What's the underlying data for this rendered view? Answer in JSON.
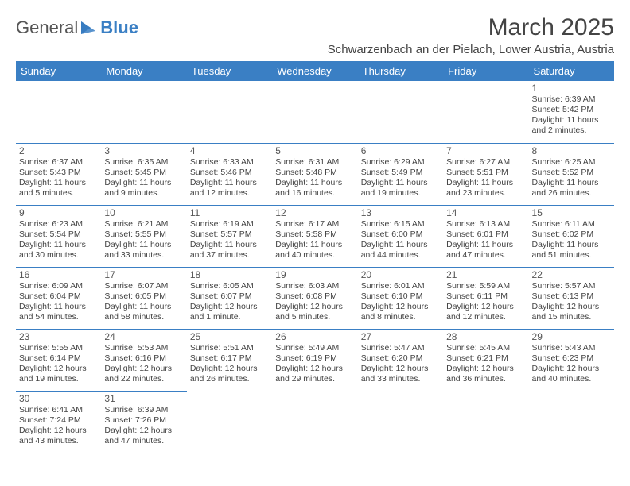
{
  "logo": {
    "text1": "General",
    "text2": "Blue"
  },
  "title": "March 2025",
  "location": "Schwarzenbach an der Pielach, Lower Austria, Austria",
  "colors": {
    "header_bg": "#3a7fc4",
    "header_fg": "#ffffff",
    "border": "#3a7fc4",
    "text": "#444444",
    "logo_gray": "#555555",
    "background": "#ffffff"
  },
  "day_headers": [
    "Sunday",
    "Monday",
    "Tuesday",
    "Wednesday",
    "Thursday",
    "Friday",
    "Saturday"
  ],
  "weeks": [
    [
      null,
      null,
      null,
      null,
      null,
      null,
      {
        "n": "1",
        "sr": "Sunrise: 6:39 AM",
        "ss": "Sunset: 5:42 PM",
        "dl": "Daylight: 11 hours and 2 minutes."
      }
    ],
    [
      {
        "n": "2",
        "sr": "Sunrise: 6:37 AM",
        "ss": "Sunset: 5:43 PM",
        "dl": "Daylight: 11 hours and 5 minutes."
      },
      {
        "n": "3",
        "sr": "Sunrise: 6:35 AM",
        "ss": "Sunset: 5:45 PM",
        "dl": "Daylight: 11 hours and 9 minutes."
      },
      {
        "n": "4",
        "sr": "Sunrise: 6:33 AM",
        "ss": "Sunset: 5:46 PM",
        "dl": "Daylight: 11 hours and 12 minutes."
      },
      {
        "n": "5",
        "sr": "Sunrise: 6:31 AM",
        "ss": "Sunset: 5:48 PM",
        "dl": "Daylight: 11 hours and 16 minutes."
      },
      {
        "n": "6",
        "sr": "Sunrise: 6:29 AM",
        "ss": "Sunset: 5:49 PM",
        "dl": "Daylight: 11 hours and 19 minutes."
      },
      {
        "n": "7",
        "sr": "Sunrise: 6:27 AM",
        "ss": "Sunset: 5:51 PM",
        "dl": "Daylight: 11 hours and 23 minutes."
      },
      {
        "n": "8",
        "sr": "Sunrise: 6:25 AM",
        "ss": "Sunset: 5:52 PM",
        "dl": "Daylight: 11 hours and 26 minutes."
      }
    ],
    [
      {
        "n": "9",
        "sr": "Sunrise: 6:23 AM",
        "ss": "Sunset: 5:54 PM",
        "dl": "Daylight: 11 hours and 30 minutes."
      },
      {
        "n": "10",
        "sr": "Sunrise: 6:21 AM",
        "ss": "Sunset: 5:55 PM",
        "dl": "Daylight: 11 hours and 33 minutes."
      },
      {
        "n": "11",
        "sr": "Sunrise: 6:19 AM",
        "ss": "Sunset: 5:57 PM",
        "dl": "Daylight: 11 hours and 37 minutes."
      },
      {
        "n": "12",
        "sr": "Sunrise: 6:17 AM",
        "ss": "Sunset: 5:58 PM",
        "dl": "Daylight: 11 hours and 40 minutes."
      },
      {
        "n": "13",
        "sr": "Sunrise: 6:15 AM",
        "ss": "Sunset: 6:00 PM",
        "dl": "Daylight: 11 hours and 44 minutes."
      },
      {
        "n": "14",
        "sr": "Sunrise: 6:13 AM",
        "ss": "Sunset: 6:01 PM",
        "dl": "Daylight: 11 hours and 47 minutes."
      },
      {
        "n": "15",
        "sr": "Sunrise: 6:11 AM",
        "ss": "Sunset: 6:02 PM",
        "dl": "Daylight: 11 hours and 51 minutes."
      }
    ],
    [
      {
        "n": "16",
        "sr": "Sunrise: 6:09 AM",
        "ss": "Sunset: 6:04 PM",
        "dl": "Daylight: 11 hours and 54 minutes."
      },
      {
        "n": "17",
        "sr": "Sunrise: 6:07 AM",
        "ss": "Sunset: 6:05 PM",
        "dl": "Daylight: 11 hours and 58 minutes."
      },
      {
        "n": "18",
        "sr": "Sunrise: 6:05 AM",
        "ss": "Sunset: 6:07 PM",
        "dl": "Daylight: 12 hours and 1 minute."
      },
      {
        "n": "19",
        "sr": "Sunrise: 6:03 AM",
        "ss": "Sunset: 6:08 PM",
        "dl": "Daylight: 12 hours and 5 minutes."
      },
      {
        "n": "20",
        "sr": "Sunrise: 6:01 AM",
        "ss": "Sunset: 6:10 PM",
        "dl": "Daylight: 12 hours and 8 minutes."
      },
      {
        "n": "21",
        "sr": "Sunrise: 5:59 AM",
        "ss": "Sunset: 6:11 PM",
        "dl": "Daylight: 12 hours and 12 minutes."
      },
      {
        "n": "22",
        "sr": "Sunrise: 5:57 AM",
        "ss": "Sunset: 6:13 PM",
        "dl": "Daylight: 12 hours and 15 minutes."
      }
    ],
    [
      {
        "n": "23",
        "sr": "Sunrise: 5:55 AM",
        "ss": "Sunset: 6:14 PM",
        "dl": "Daylight: 12 hours and 19 minutes."
      },
      {
        "n": "24",
        "sr": "Sunrise: 5:53 AM",
        "ss": "Sunset: 6:16 PM",
        "dl": "Daylight: 12 hours and 22 minutes."
      },
      {
        "n": "25",
        "sr": "Sunrise: 5:51 AM",
        "ss": "Sunset: 6:17 PM",
        "dl": "Daylight: 12 hours and 26 minutes."
      },
      {
        "n": "26",
        "sr": "Sunrise: 5:49 AM",
        "ss": "Sunset: 6:19 PM",
        "dl": "Daylight: 12 hours and 29 minutes."
      },
      {
        "n": "27",
        "sr": "Sunrise: 5:47 AM",
        "ss": "Sunset: 6:20 PM",
        "dl": "Daylight: 12 hours and 33 minutes."
      },
      {
        "n": "28",
        "sr": "Sunrise: 5:45 AM",
        "ss": "Sunset: 6:21 PM",
        "dl": "Daylight: 12 hours and 36 minutes."
      },
      {
        "n": "29",
        "sr": "Sunrise: 5:43 AM",
        "ss": "Sunset: 6:23 PM",
        "dl": "Daylight: 12 hours and 40 minutes."
      }
    ],
    [
      {
        "n": "30",
        "sr": "Sunrise: 6:41 AM",
        "ss": "Sunset: 7:24 PM",
        "dl": "Daylight: 12 hours and 43 minutes."
      },
      {
        "n": "31",
        "sr": "Sunrise: 6:39 AM",
        "ss": "Sunset: 7:26 PM",
        "dl": "Daylight: 12 hours and 47 minutes."
      },
      null,
      null,
      null,
      null,
      null
    ]
  ]
}
